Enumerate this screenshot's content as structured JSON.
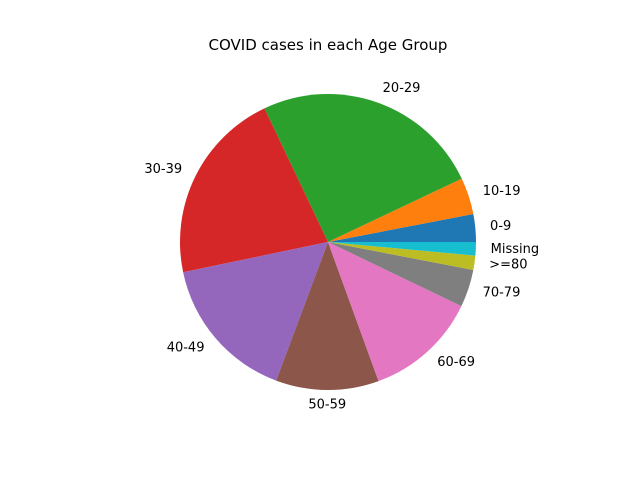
{
  "chart_data": {
    "type": "pie",
    "title": "COVID cases in each Age Group",
    "start_angle_deg": 0,
    "direction": "counterclockwise",
    "slices": [
      {
        "label": "0-9",
        "value": 3.1,
        "color": "#1f77b4"
      },
      {
        "label": "10-19",
        "value": 4.1,
        "color": "#ff7f0e"
      },
      {
        "label": "20-29",
        "value": 25.6,
        "color": "#2ca02c"
      },
      {
        "label": "30-39",
        "value": 21.7,
        "color": "#d62728"
      },
      {
        "label": "40-49",
        "value": 16.4,
        "color": "#9467bd"
      },
      {
        "label": "50-59",
        "value": 11.5,
        "color": "#8c564b"
      },
      {
        "label": "60-69",
        "value": 12.6,
        "color": "#e377c2"
      },
      {
        "label": "70-79",
        "value": 4.2,
        "color": "#7f7f7f"
      },
      {
        "label": ">=80",
        "value": 1.6,
        "color": "#bcbd22"
      },
      {
        "label": "Missing",
        "value": 1.5,
        "color": "#17becf"
      }
    ]
  }
}
